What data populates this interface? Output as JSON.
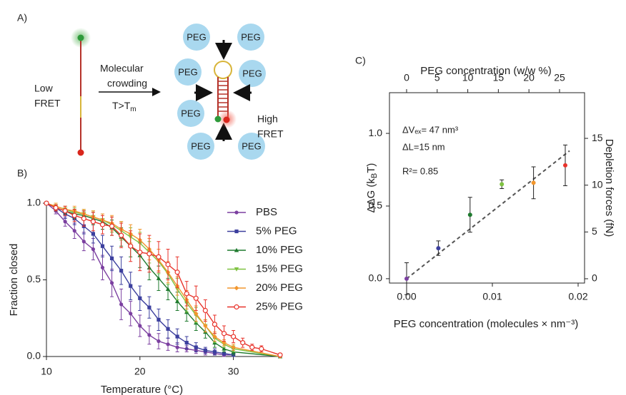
{
  "panel_a": {
    "label": "A)",
    "left": [
      "Low",
      "FRET"
    ],
    "arrow": [
      "Molecular",
      "crowding"
    ],
    "condition": [
      "T>T",
      "m"
    ],
    "right": [
      "High",
      "FRET"
    ],
    "peg": "PEG"
  },
  "chart_data": [
    {
      "type": "line",
      "panel": "B)",
      "xlabel": "Temperature (°C)",
      "ylabel": "Fraction closed",
      "xlim": [
        10,
        35
      ],
      "xticks": [
        10,
        20,
        30
      ],
      "ylim": [
        0,
        1
      ],
      "yticks": [
        {
          "value": 0,
          "label": "0.0"
        },
        {
          "value": 0.5,
          "label": "0.5"
        },
        {
          "value": 1,
          "label": "1.0"
        }
      ],
      "legend": "right",
      "series": [
        {
          "name": "PBS",
          "color": "#7b3fa0",
          "marker": "circle",
          "x": [
            10,
            11,
            12,
            13,
            14,
            15,
            16,
            17,
            18,
            19,
            20,
            21,
            22,
            23,
            24,
            25,
            26,
            27,
            28,
            29,
            30
          ],
          "values": [
            1.0,
            0.95,
            0.88,
            0.82,
            0.75,
            0.7,
            0.58,
            0.48,
            0.34,
            0.28,
            0.2,
            0.14,
            0.1,
            0.08,
            0.06,
            0.05,
            0.04,
            0.03,
            0.02,
            0.01,
            0.01
          ],
          "errors": [
            0,
            0.02,
            0.03,
            0.05,
            0.06,
            0.07,
            0.08,
            0.09,
            0.1,
            0.08,
            0.07,
            0.06,
            0.05,
            0.04,
            0.03,
            0.02,
            0.02,
            0.02,
            0.01,
            0.01,
            0.01
          ]
        },
        {
          "name": "5% PEG",
          "color": "#3c3f9e",
          "marker": "square",
          "x": [
            10,
            11,
            12,
            13,
            14,
            15,
            16,
            17,
            18,
            19,
            20,
            21,
            22,
            23,
            24,
            25,
            26,
            27,
            28,
            29,
            30
          ],
          "values": [
            1.0,
            0.97,
            0.93,
            0.9,
            0.85,
            0.8,
            0.72,
            0.64,
            0.56,
            0.46,
            0.38,
            0.32,
            0.24,
            0.18,
            0.13,
            0.09,
            0.06,
            0.04,
            0.03,
            0.02,
            0.01
          ],
          "errors": [
            0,
            0.02,
            0.03,
            0.04,
            0.05,
            0.06,
            0.07,
            0.08,
            0.09,
            0.09,
            0.08,
            0.07,
            0.07,
            0.06,
            0.05,
            0.04,
            0.03,
            0.02,
            0.02,
            0.01,
            0.01
          ]
        },
        {
          "name": "10% PEG",
          "color": "#1e7a2e",
          "marker": "triangle",
          "x": [
            10,
            11,
            12,
            13,
            14,
            15,
            16,
            17,
            18,
            19,
            20,
            21,
            22,
            23,
            24,
            25,
            26,
            27,
            28,
            29,
            30,
            35
          ],
          "values": [
            1.0,
            0.97,
            0.95,
            0.93,
            0.92,
            0.9,
            0.88,
            0.84,
            0.78,
            0.72,
            0.66,
            0.58,
            0.51,
            0.44,
            0.36,
            0.29,
            0.22,
            0.16,
            0.09,
            0.05,
            0.03,
            0
          ],
          "errors": [
            0,
            0.02,
            0.02,
            0.03,
            0.03,
            0.04,
            0.05,
            0.05,
            0.06,
            0.07,
            0.08,
            0.08,
            0.08,
            0.07,
            0.06,
            0.06,
            0.05,
            0.04,
            0.03,
            0.02,
            0.02,
            0
          ]
        },
        {
          "name": "15% PEG",
          "color": "#7fc241",
          "marker": "triangle-down",
          "x": [
            10,
            11,
            12,
            13,
            14,
            15,
            16,
            17,
            18,
            19,
            20,
            21,
            22,
            23,
            24,
            25,
            26,
            27,
            28,
            29,
            30,
            35
          ],
          "values": [
            1.0,
            0.98,
            0.96,
            0.94,
            0.93,
            0.91,
            0.89,
            0.86,
            0.82,
            0.78,
            0.74,
            0.68,
            0.62,
            0.54,
            0.44,
            0.35,
            0.27,
            0.2,
            0.12,
            0.08,
            0.05,
            0
          ],
          "errors": [
            0,
            0.02,
            0.02,
            0.03,
            0.03,
            0.04,
            0.04,
            0.05,
            0.06,
            0.06,
            0.07,
            0.07,
            0.08,
            0.07,
            0.07,
            0.06,
            0.05,
            0.04,
            0.03,
            0.02,
            0.02,
            0
          ]
        },
        {
          "name": "20% PEG",
          "color": "#f2962d",
          "marker": "diamond",
          "x": [
            10,
            11,
            12,
            13,
            14,
            15,
            16,
            17,
            18,
            19,
            20,
            21,
            22,
            23,
            24,
            25,
            26,
            27,
            28,
            29,
            30,
            35
          ],
          "values": [
            1.0,
            0.98,
            0.96,
            0.95,
            0.93,
            0.91,
            0.89,
            0.87,
            0.83,
            0.8,
            0.76,
            0.7,
            0.63,
            0.55,
            0.46,
            0.37,
            0.28,
            0.2,
            0.13,
            0.09,
            0.06,
            0
          ],
          "errors": [
            0,
            0.02,
            0.02,
            0.03,
            0.03,
            0.04,
            0.04,
            0.05,
            0.05,
            0.06,
            0.07,
            0.07,
            0.07,
            0.07,
            0.06,
            0.06,
            0.05,
            0.04,
            0.03,
            0.02,
            0.02,
            0
          ]
        },
        {
          "name": "25% PEG",
          "color": "#e8322a",
          "marker": "open-circle",
          "x": [
            10,
            11,
            12,
            13,
            14,
            15,
            16,
            17,
            18,
            19,
            20,
            21,
            22,
            23,
            24,
            25,
            26,
            27,
            28,
            29,
            30,
            31,
            32,
            33,
            35
          ],
          "values": [
            1.0,
            0.97,
            0.95,
            0.92,
            0.9,
            0.88,
            0.86,
            0.85,
            0.79,
            0.72,
            0.68,
            0.67,
            0.65,
            0.6,
            0.55,
            0.41,
            0.38,
            0.3,
            0.21,
            0.15,
            0.13,
            0.09,
            0.06,
            0.05,
            0.01
          ],
          "errors": [
            0,
            0.02,
            0.03,
            0.04,
            0.05,
            0.06,
            0.06,
            0.06,
            0.08,
            0.1,
            0.12,
            0.12,
            0.1,
            0.1,
            0.1,
            0.08,
            0.08,
            0.07,
            0.06,
            0.05,
            0.04,
            0.03,
            0.02,
            0.02,
            0.01
          ]
        }
      ]
    },
    {
      "type": "scatter",
      "panel": "C)",
      "xlabel": "PEG concentration (molecules × nm⁻³)",
      "ylabel": [
        "ΔΔG (k",
        "B",
        "T)"
      ],
      "x2label": "PEG concentration (w/w %)",
      "y2label": "Depletion forces (fN)",
      "xlim": [
        -0.002,
        0.02075
      ],
      "xticks": [
        {
          "value": 0,
          "label": "0.00"
        },
        0.01,
        0.02
      ],
      "ylim": [
        -0.03,
        1.28
      ],
      "yticks": [
        {
          "value": 0,
          "label": "0.0"
        },
        0.5,
        {
          "value": 1,
          "label": "1.0"
        }
      ],
      "x2lim": [
        -2.8,
        29.09
      ],
      "x2ticks": [
        0,
        5,
        10,
        15,
        20,
        25
      ],
      "y2lim": [
        -0.46,
        19.88
      ],
      "y2ticks": [
        0,
        5,
        10,
        15
      ],
      "annotations": [
        "ΔVₑₓ= 47 nm³",
        "ΔL=15 nm",
        "R²= 0.85"
      ],
      "series": [
        {
          "x": [
            0,
            0.0037,
            0.0074,
            0.0111,
            0.0148,
            0.0185
          ],
          "values": [
            0,
            0.21,
            0.44,
            0.65,
            0.66,
            0.78
          ],
          "errors": [
            0.11,
            0.05,
            0.12,
            0.03,
            0.11,
            0.14
          ],
          "colors": [
            "#7b3fa0",
            "#3c3f9e",
            "#1e7a2e",
            "#7fc241",
            "#f2962d",
            "#e8322a"
          ]
        }
      ],
      "fit": {
        "x": [
          0,
          0.019
        ],
        "values": [
          0,
          0.88
        ],
        "color": "#555555",
        "style": "dashed"
      }
    }
  ]
}
